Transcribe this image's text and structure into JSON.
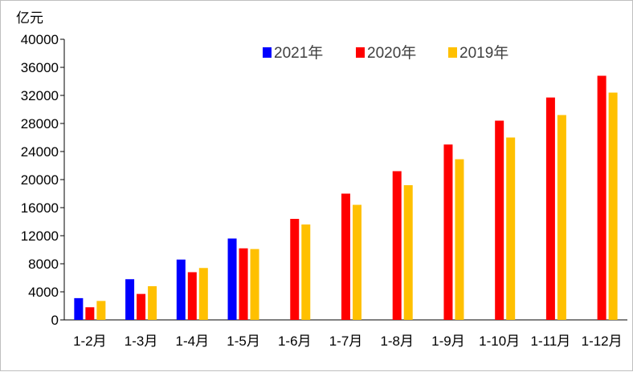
{
  "chart_data": {
    "type": "bar",
    "unit_label": "亿元",
    "categories": [
      "1-2月",
      "1-3月",
      "1-4月",
      "1-5月",
      "1-6月",
      "1-7月",
      "1-8月",
      "1-9月",
      "1-10月",
      "1-11月",
      "1-12月"
    ],
    "ylim": [
      0,
      40000
    ],
    "yticks": [
      0,
      4000,
      8000,
      12000,
      16000,
      20000,
      24000,
      28000,
      32000,
      36000,
      40000
    ],
    "grid": false,
    "legend_position": "top-center",
    "series": [
      {
        "name": "2021年",
        "color": "#0000ff",
        "values": [
          3100,
          5800,
          8600,
          11600,
          null,
          null,
          null,
          null,
          null,
          null,
          null
        ]
      },
      {
        "name": "2020年",
        "color": "#ff0000",
        "values": [
          1800,
          3700,
          6800,
          10200,
          14400,
          18000,
          21200,
          25000,
          28400,
          31700,
          34800
        ]
      },
      {
        "name": "2019年",
        "color": "#ffc000",
        "values": [
          2700,
          4800,
          7400,
          10100,
          13600,
          16400,
          19200,
          22900,
          26000,
          29200,
          32400
        ]
      }
    ]
  }
}
